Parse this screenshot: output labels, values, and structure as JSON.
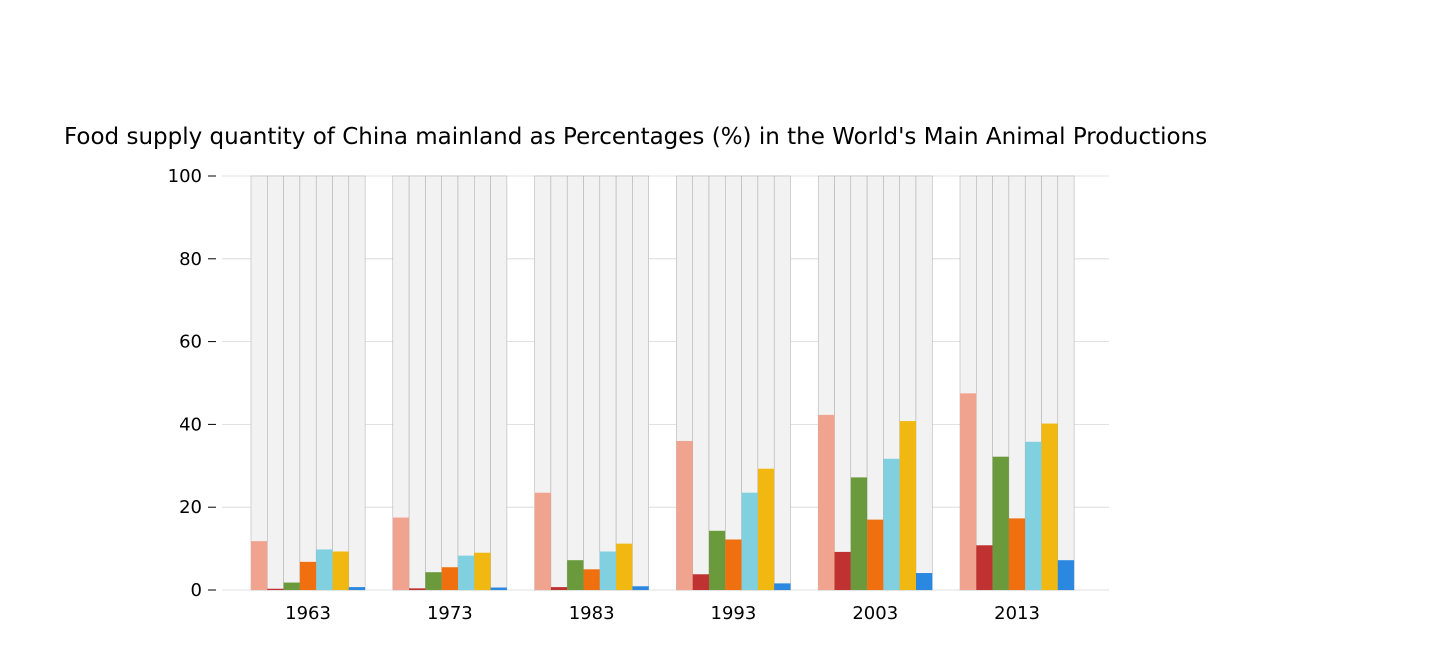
{
  "chart_data": {
    "type": "bar",
    "title": "Food supply quantity of China mainland as Percentages (%) in the World's Main Animal Productions",
    "xlabel": "",
    "ylabel": "",
    "categories": [
      "1963",
      "1973",
      "1983",
      "1993",
      "2003",
      "2013"
    ],
    "ylim": [
      0,
      100
    ],
    "yticks": [
      0,
      20,
      40,
      60,
      80,
      100
    ],
    "grid": true,
    "background_bars_to": 100,
    "series": [
      {
        "color": "#f0a48f",
        "values": [
          11.8,
          17.5,
          23.5,
          36.0,
          42.3,
          47.5
        ]
      },
      {
        "color": "#c03232",
        "values": [
          0.3,
          0.4,
          0.7,
          3.8,
          9.2,
          10.8
        ]
      },
      {
        "color": "#6a9a3c",
        "values": [
          1.8,
          4.3,
          7.2,
          14.3,
          27.2,
          32.2
        ]
      },
      {
        "color": "#f07010",
        "values": [
          6.8,
          5.5,
          5.0,
          12.2,
          17.0,
          17.3
        ]
      },
      {
        "color": "#80d0e0",
        "values": [
          9.8,
          8.3,
          9.3,
          23.5,
          31.7,
          35.8
        ]
      },
      {
        "color": "#f0b810",
        "values": [
          9.3,
          9.0,
          11.2,
          29.3,
          40.8,
          40.2
        ]
      },
      {
        "color": "#2a88e0",
        "values": [
          0.7,
          0.6,
          0.9,
          1.6,
          4.1,
          7.2
        ]
      }
    ]
  }
}
